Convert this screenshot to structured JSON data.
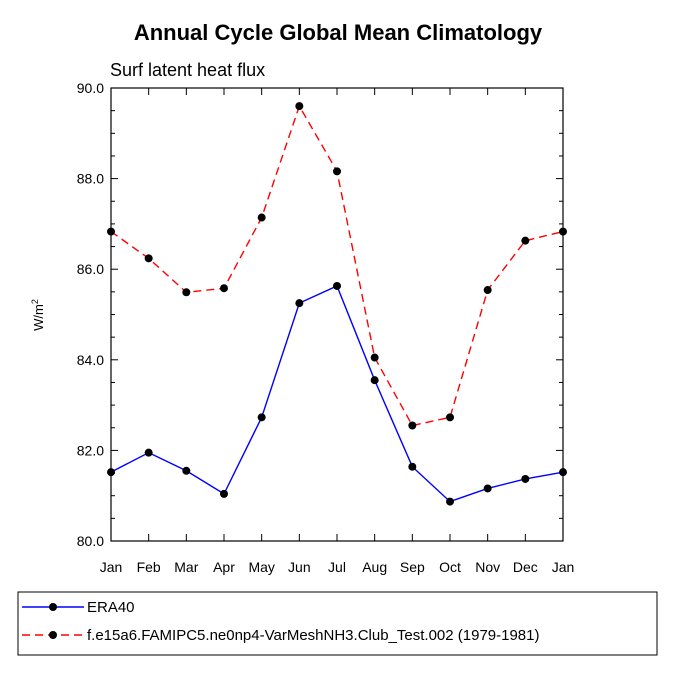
{
  "chart_data": {
    "type": "line",
    "title": "Annual Cycle Global Mean Climatology",
    "subtitle": "Surf latent heat flux",
    "ylabel": "W/m",
    "ylabel_sup": "2",
    "categories": [
      "Jan",
      "Feb",
      "Mar",
      "Apr",
      "May",
      "Jun",
      "Jul",
      "Aug",
      "Sep",
      "Oct",
      "Nov",
      "Dec",
      "Jan"
    ],
    "ylim": [
      80.0,
      90.0
    ],
    "yticks": [
      80.0,
      82.0,
      84.0,
      86.0,
      88.0,
      90.0
    ],
    "ytick_labels": [
      "80.0",
      "82.0",
      "84.0",
      "86.0",
      "88.0",
      "90.0"
    ],
    "series": [
      {
        "name": "ERA40",
        "color": "#0000ff",
        "dash": "solid",
        "values": [
          81.52,
          81.95,
          81.55,
          81.04,
          82.73,
          85.25,
          85.63,
          83.55,
          81.64,
          80.87,
          81.16,
          81.37,
          81.52
        ]
      },
      {
        "name": "f.e15a6.FAMIPC5.ne0np4-VarMeshNH3.Club_Test.002 (1979-1981)",
        "color": "#ff0000",
        "dash": "dashed",
        "values": [
          86.83,
          86.24,
          85.49,
          85.58,
          87.14,
          89.6,
          88.16,
          84.05,
          82.55,
          82.73,
          85.54,
          86.63,
          86.83
        ]
      }
    ],
    "marker_color": "#000000"
  }
}
